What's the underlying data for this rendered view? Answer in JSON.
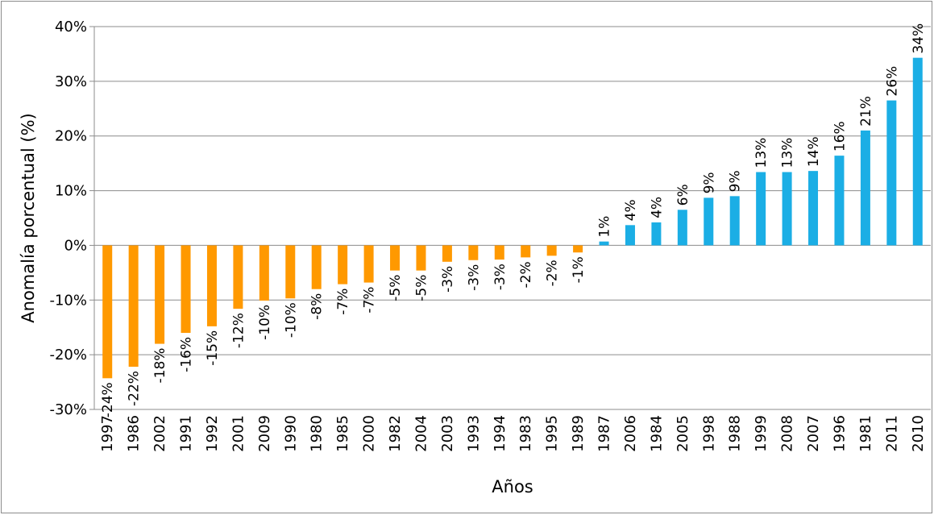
{
  "chart_data": {
    "type": "bar",
    "xlabel": "Años",
    "ylabel": "Anomalía porcentual (%)",
    "ylim": [
      -30,
      40
    ],
    "yticks": [
      40,
      30,
      20,
      10,
      0,
      -10,
      -20,
      -30
    ],
    "ytick_labels": [
      "40%",
      "30%",
      "20%",
      "10%",
      "0%",
      "-10%",
      "-20%",
      "-30%"
    ],
    "grid": true,
    "legend": "none",
    "colors": {
      "negative": "#FF9900",
      "positive": "#1BAEE5",
      "grid": "#8c8c8c"
    },
    "categories": [
      "1997",
      "1986",
      "2002",
      "1991",
      "1992",
      "2001",
      "2009",
      "1990",
      "1980",
      "1985",
      "2000",
      "1982",
      "2004",
      "2003",
      "1993",
      "1994",
      "1983",
      "1995",
      "1989",
      "1987",
      "2006",
      "1984",
      "2005",
      "1998",
      "1988",
      "1999",
      "2008",
      "2007",
      "1996",
      "1981",
      "2011",
      "2010"
    ],
    "values": [
      -24.3,
      -22.2,
      -18.0,
      -16.0,
      -14.8,
      -11.6,
      -10.1,
      -9.7,
      -8.0,
      -7.1,
      -6.8,
      -4.6,
      -4.6,
      -3.0,
      -2.7,
      -2.6,
      -2.2,
      -1.9,
      -1.3,
      0.7,
      3.7,
      4.2,
      6.5,
      8.7,
      9.0,
      13.4,
      13.4,
      13.6,
      16.4,
      21.0,
      26.5,
      34.3
    ],
    "value_labels": [
      "-24%",
      "-22%",
      "-18%",
      "-16%",
      "-15%",
      "-12%",
      "-10%",
      "-10%",
      "-8%",
      "-7%",
      "-7%",
      "-5%",
      "-5%",
      "-3%",
      "-3%",
      "-3%",
      "-2%",
      "-2%",
      "-1%",
      "1%",
      "4%",
      "4%",
      "6%",
      "9%",
      "9%",
      "13%",
      "13%",
      "14%",
      "16%",
      "21%",
      "26%",
      "34%"
    ]
  }
}
